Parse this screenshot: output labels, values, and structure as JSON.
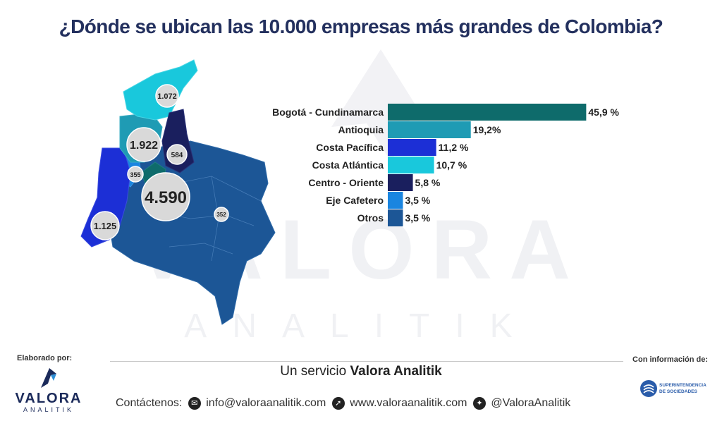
{
  "title": "¿Dónde se ubican las 10.000 empresas más grandes de Colombia?",
  "watermark": {
    "main": "VALORA",
    "sub": "ANALITIK"
  },
  "map_bubbles": [
    {
      "label": "1.072"
    },
    {
      "label": "1.922"
    },
    {
      "label": "584"
    },
    {
      "label": "355"
    },
    {
      "label": "4.590"
    },
    {
      "label": "352"
    },
    {
      "label": "1.125"
    }
  ],
  "chart_data": {
    "type": "bar",
    "orientation": "horizontal",
    "categories": [
      "Bogotá - Cundinamarca",
      "Antioquia",
      "Costa Pacífica",
      "Costa Atlántica",
      "Centro - Oriente",
      "Eje Cafetero",
      "Otros"
    ],
    "values": [
      45.9,
      19.2,
      11.2,
      10.7,
      5.8,
      3.5,
      3.5
    ],
    "value_labels": [
      "45,9 %",
      "19,2%",
      "11,2 %",
      "10,7 %",
      "5,8 %",
      "3,5 %",
      "3,5 %"
    ],
    "colors": [
      "#0e6b6b",
      "#1f9bb4",
      "#1c2fd6",
      "#19c8dc",
      "#1a1f5e",
      "#1a85e0",
      "#1c5696"
    ],
    "xlim": [
      0,
      46
    ]
  },
  "footer": {
    "made_by": "Elaborado por:",
    "info_from": "Con información de:",
    "service_prefix": "Un servicio",
    "service_brand": "Valora Analitik",
    "contact_label": "Contáctenos:",
    "email": "info@valoraanalitik.com",
    "website": "www.valoraanalitik.com",
    "twitter": "@ValoraAnalitik",
    "logo_main": "VALORA",
    "logo_sub": "ANALITIK",
    "super_line1": "SUPERINTENDENCIA",
    "super_line2": "DE SOCIEDADES"
  },
  "icons": {
    "email": "envelope-icon",
    "web": "cursor-icon",
    "twitter": "twitter-icon"
  }
}
